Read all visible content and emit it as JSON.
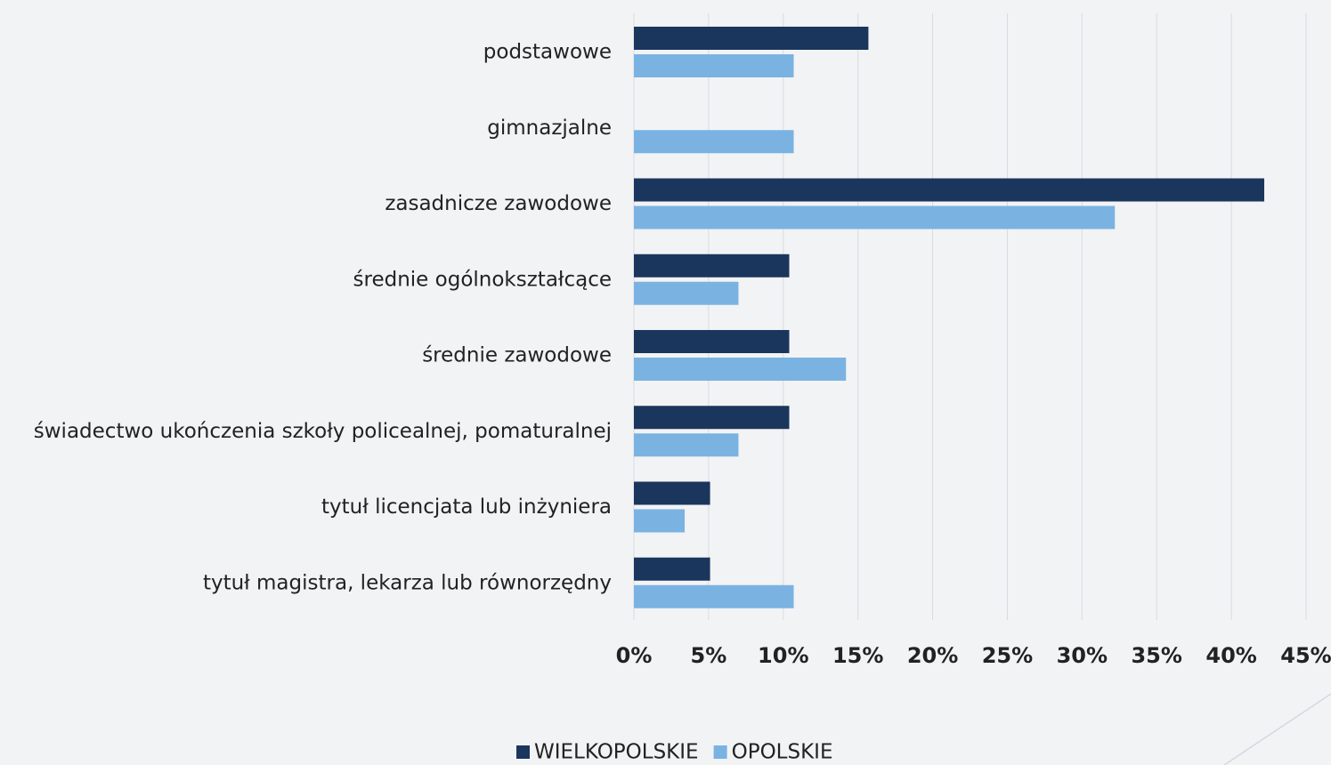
{
  "chart_data": {
    "type": "bar",
    "orientation": "horizontal",
    "categories": [
      "podstawowe",
      "gimnazjalne",
      "zasadnicze zawodowe",
      "średnie ogólnokształcące",
      "średnie zawodowe",
      "świadectwo ukończenia szkoły policealnej, pomaturalnej",
      "tytuł licencjata lub inżyniera",
      "tytuł magistra, lekarza lub równorzędny"
    ],
    "series": [
      {
        "name": "WIELKOPOLSKIE",
        "color": "#1b365d",
        "values": [
          15.7,
          0,
          42.2,
          10.4,
          10.4,
          10.4,
          5.1,
          5.1
        ]
      },
      {
        "name": "OPOLSKIE",
        "color": "#7ab3e2",
        "values": [
          10.7,
          10.7,
          32.2,
          7.0,
          14.2,
          7.0,
          3.4,
          10.7
        ]
      }
    ],
    "xlim": [
      0,
      45
    ],
    "xticks": [
      {
        "value": 0,
        "label": "0%"
      },
      {
        "value": 5,
        "label": "5%"
      },
      {
        "value": 10,
        "label": "10%"
      },
      {
        "value": 15,
        "label": "15%"
      },
      {
        "value": 20,
        "label": "20%"
      },
      {
        "value": 25,
        "label": "25%"
      },
      {
        "value": 30,
        "label": "30%"
      },
      {
        "value": 35,
        "label": "35%"
      },
      {
        "value": 40,
        "label": "40%"
      },
      {
        "value": 45,
        "label": "45%"
      }
    ],
    "grid": true,
    "legend": "bottom"
  }
}
